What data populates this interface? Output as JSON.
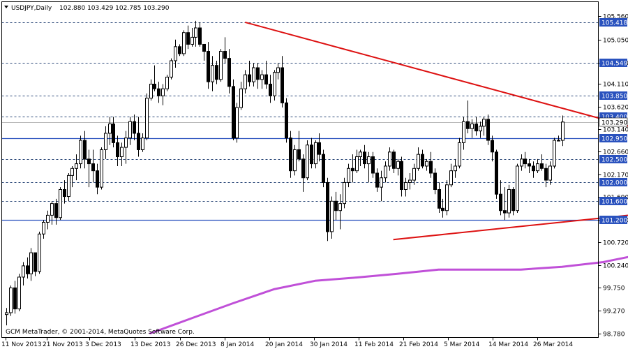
{
  "chart_data": {
    "type": "candlestick",
    "title": "USDJPY,Daily",
    "ohlc_header": "102.880 103.429 102.785 103.290",
    "footer": "GCM MetaTrader, © 2001-2014, MetaQuotes Software Corp.",
    "ylim": [
      98.78,
      105.65
    ],
    "y_ticks": [
      "105.560",
      "105.050",
      "104.549",
      "104.110",
      "103.620",
      "103.140",
      "102.660",
      "102.170",
      "101.690",
      "101.200",
      "100.720",
      "100.240",
      "99.750",
      "99.270",
      "98.780"
    ],
    "x_ticks": [
      "11 Nov 2013",
      "21 Nov 2013",
      "3 Dec 2013",
      "13 Dec 2013",
      "26 Dec 2013",
      "8 Jan 2014",
      "20 Jan 2014",
      "30 Jan 2014",
      "11 Feb 2014",
      "21 Feb 2014",
      "5 Mar 2014",
      "14 Mar 2014",
      "26 Mar 2014"
    ],
    "level_lines": [
      {
        "label": "105.418",
        "value": 105.418,
        "style": "dashed"
      },
      {
        "label": "104.549",
        "value": 104.549,
        "style": "dashed"
      },
      {
        "label": "103.850",
        "value": 103.85,
        "style": "dashed"
      },
      {
        "label": "103.400",
        "value": 103.4,
        "style": "dashed"
      },
      {
        "label": "102.950",
        "value": 102.95,
        "style": "solid"
      },
      {
        "label": "102.500",
        "value": 102.5,
        "style": "dashed"
      },
      {
        "label": "102.000",
        "value": 102.0,
        "style": "dashed"
      },
      {
        "label": "101.600",
        "value": 101.6,
        "style": "dashed"
      },
      {
        "label": "101.200",
        "value": 101.2,
        "style": "solid"
      }
    ],
    "current_price": {
      "label": "103.290",
      "value": 103.29
    },
    "candles": [
      [
        99.18,
        99.32,
        98.95,
        99.22
      ],
      [
        99.22,
        99.8,
        99.15,
        99.75
      ],
      [
        99.75,
        99.9,
        99.2,
        99.3
      ],
      [
        99.3,
        100.05,
        99.25,
        99.98
      ],
      [
        99.98,
        100.3,
        99.8,
        100.22
      ],
      [
        100.22,
        100.4,
        99.95,
        100.05
      ],
      [
        100.05,
        100.6,
        99.9,
        100.5
      ],
      [
        100.5,
        100.5,
        100.0,
        100.1
      ],
      [
        100.1,
        100.95,
        100.05,
        100.9
      ],
      [
        100.9,
        101.2,
        100.8,
        101.15
      ],
      [
        101.15,
        101.4,
        101.0,
        101.3
      ],
      [
        101.3,
        101.6,
        101.1,
        101.55
      ],
      [
        101.55,
        101.65,
        101.1,
        101.25
      ],
      [
        101.25,
        101.9,
        101.2,
        101.85
      ],
      [
        101.85,
        102.05,
        101.55,
        101.7
      ],
      [
        101.7,
        102.2,
        101.6,
        102.15
      ],
      [
        102.15,
        102.35,
        101.9,
        102.3
      ],
      [
        102.3,
        102.6,
        102.05,
        102.4
      ],
      [
        102.4,
        103.0,
        102.3,
        102.9
      ],
      [
        102.9,
        103.1,
        102.3,
        102.5
      ],
      [
        102.5,
        102.7,
        101.9,
        102.4
      ],
      [
        102.4,
        102.7,
        102.0,
        102.25
      ],
      [
        102.25,
        102.4,
        101.75,
        101.9
      ],
      [
        101.9,
        102.75,
        101.85,
        102.7
      ],
      [
        102.7,
        103.2,
        102.5,
        103.05
      ],
      [
        103.05,
        103.4,
        102.8,
        103.25
      ],
      [
        103.25,
        103.4,
        102.75,
        102.85
      ],
      [
        102.85,
        103.0,
        102.35,
        102.55
      ],
      [
        102.55,
        102.85,
        102.35,
        102.75
      ],
      [
        102.75,
        103.1,
        102.4,
        102.95
      ],
      [
        102.95,
        103.4,
        102.8,
        103.3
      ],
      [
        103.3,
        103.45,
        102.9,
        103.05
      ],
      [
        103.05,
        103.4,
        102.55,
        102.7
      ],
      [
        102.7,
        103.05,
        102.65,
        102.95
      ],
      [
        102.95,
        103.9,
        102.9,
        103.8
      ],
      [
        103.8,
        104.2,
        103.75,
        104.1
      ],
      [
        104.1,
        104.5,
        103.95,
        104.0
      ],
      [
        104.0,
        104.15,
        103.7,
        103.85
      ],
      [
        103.85,
        104.1,
        103.65,
        104.0
      ],
      [
        104.0,
        104.3,
        103.95,
        104.25
      ],
      [
        104.25,
        104.65,
        104.2,
        104.6
      ],
      [
        104.6,
        105.05,
        104.45,
        104.9
      ],
      [
        104.9,
        104.95,
        104.7,
        104.75
      ],
      [
        104.75,
        105.25,
        104.7,
        105.2
      ],
      [
        105.2,
        105.35,
        104.85,
        104.95
      ],
      [
        104.95,
        105.3,
        104.9,
        105.1
      ],
      [
        105.1,
        105.45,
        104.9,
        105.3
      ],
      [
        105.3,
        105.42,
        104.9,
        104.95
      ],
      [
        104.95,
        104.95,
        104.6,
        104.8
      ],
      [
        104.8,
        105.0,
        104.0,
        104.15
      ],
      [
        104.15,
        104.7,
        103.95,
        104.5
      ],
      [
        104.5,
        104.6,
        104.1,
        104.2
      ],
      [
        104.2,
        104.85,
        104.15,
        104.8
      ],
      [
        104.8,
        105.1,
        104.55,
        104.65
      ],
      [
        104.65,
        104.85,
        103.9,
        104.05
      ],
      [
        104.05,
        104.2,
        102.9,
        102.95
      ],
      [
        102.95,
        103.7,
        102.85,
        103.6
      ],
      [
        103.6,
        104.15,
        103.55,
        104.0
      ],
      [
        104.0,
        104.4,
        103.9,
        104.3
      ],
      [
        104.3,
        104.6,
        104.05,
        104.15
      ],
      [
        104.15,
        104.55,
        104.05,
        104.45
      ],
      [
        104.45,
        104.55,
        104.0,
        104.2
      ],
      [
        104.2,
        104.4,
        104.0,
        104.3
      ],
      [
        104.3,
        104.6,
        104.0,
        104.1
      ],
      [
        104.1,
        104.3,
        103.7,
        103.85
      ],
      [
        103.85,
        104.4,
        103.75,
        104.35
      ],
      [
        104.35,
        104.55,
        104.2,
        104.45
      ],
      [
        104.45,
        104.7,
        103.6,
        103.7
      ],
      [
        103.7,
        103.8,
        102.85,
        102.95
      ],
      [
        102.95,
        103.1,
        102.1,
        102.25
      ],
      [
        102.25,
        102.8,
        102.15,
        102.7
      ],
      [
        102.7,
        103.1,
        102.45,
        102.5
      ],
      [
        102.5,
        102.6,
        101.8,
        102.1
      ],
      [
        102.1,
        102.9,
        102.05,
        102.8
      ],
      [
        102.8,
        102.95,
        102.3,
        102.4
      ],
      [
        102.4,
        102.9,
        102.3,
        102.85
      ],
      [
        102.85,
        103.05,
        102.45,
        102.6
      ],
      [
        102.6,
        102.7,
        101.9,
        102.0
      ],
      [
        102.0,
        102.1,
        100.75,
        100.95
      ],
      [
        100.95,
        101.7,
        100.8,
        101.6
      ],
      [
        101.6,
        101.8,
        101.2,
        101.4
      ],
      [
        101.4,
        101.75,
        101.0,
        101.55
      ],
      [
        101.55,
        102.1,
        101.45,
        102.0
      ],
      [
        102.0,
        102.4,
        101.9,
        102.3
      ],
      [
        102.3,
        102.6,
        102.0,
        102.25
      ],
      [
        102.25,
        102.7,
        102.2,
        102.55
      ],
      [
        102.55,
        102.7,
        102.35,
        102.65
      ],
      [
        102.65,
        102.8,
        102.3,
        102.4
      ],
      [
        102.4,
        102.65,
        102.0,
        102.55
      ],
      [
        102.55,
        102.65,
        102.1,
        102.2
      ],
      [
        102.2,
        102.3,
        101.8,
        101.9
      ],
      [
        101.9,
        102.25,
        101.6,
        102.1
      ],
      [
        102.1,
        102.45,
        102.0,
        102.35
      ],
      [
        102.35,
        102.75,
        102.25,
        102.65
      ],
      [
        102.65,
        102.7,
        102.2,
        102.3
      ],
      [
        102.3,
        102.5,
        102.15,
        102.45
      ],
      [
        102.45,
        102.55,
        101.7,
        101.85
      ],
      [
        101.85,
        102.1,
        101.7,
        102.0
      ],
      [
        102.0,
        102.2,
        101.85,
        102.05
      ],
      [
        102.05,
        102.4,
        101.95,
        102.3
      ],
      [
        102.3,
        102.75,
        102.25,
        102.6
      ],
      [
        102.6,
        102.7,
        102.3,
        102.35
      ],
      [
        102.35,
        102.5,
        102.25,
        102.45
      ],
      [
        102.45,
        102.65,
        102.1,
        102.2
      ],
      [
        102.2,
        102.3,
        101.75,
        101.85
      ],
      [
        101.85,
        102.0,
        101.35,
        101.45
      ],
      [
        101.45,
        101.65,
        101.25,
        101.4
      ],
      [
        101.4,
        102.05,
        101.3,
        101.95
      ],
      [
        101.95,
        102.4,
        101.9,
        102.25
      ],
      [
        102.25,
        102.5,
        102.1,
        102.35
      ],
      [
        102.35,
        102.95,
        102.3,
        102.85
      ],
      [
        102.85,
        103.4,
        102.7,
        103.3
      ],
      [
        103.3,
        103.75,
        103.05,
        103.15
      ],
      [
        103.15,
        103.35,
        102.95,
        103.25
      ],
      [
        103.25,
        103.4,
        103.0,
        103.1
      ],
      [
        103.1,
        103.3,
        102.95,
        103.2
      ],
      [
        103.2,
        103.4,
        103.0,
        103.35
      ],
      [
        103.35,
        103.45,
        102.8,
        102.9
      ],
      [
        102.9,
        103.0,
        102.45,
        102.65
      ],
      [
        102.65,
        102.7,
        101.65,
        101.75
      ],
      [
        101.75,
        102.05,
        101.3,
        101.4
      ],
      [
        101.4,
        101.9,
        101.2,
        101.35
      ],
      [
        101.35,
        101.95,
        101.25,
        101.85
      ],
      [
        101.85,
        101.9,
        101.3,
        101.4
      ],
      [
        101.4,
        102.4,
        101.35,
        102.35
      ],
      [
        102.35,
        102.6,
        102.25,
        102.5
      ],
      [
        102.5,
        102.65,
        102.3,
        102.4
      ],
      [
        102.4,
        102.5,
        102.2,
        102.35
      ],
      [
        102.35,
        102.45,
        102.1,
        102.25
      ],
      [
        102.25,
        102.5,
        102.2,
        102.4
      ],
      [
        102.4,
        102.6,
        102.25,
        102.3
      ],
      [
        102.3,
        102.4,
        101.9,
        102.05
      ],
      [
        102.05,
        102.45,
        101.95,
        102.35
      ],
      [
        102.35,
        102.95,
        102.3,
        102.9
      ],
      [
        102.9,
        103.0,
        102.9,
        102.9
      ],
      [
        102.9,
        103.43,
        102.78,
        103.29
      ]
    ],
    "trendlines": [
      {
        "name": "resistance",
        "x": [
          58,
          163
        ],
        "y": [
          105.42,
          102.92
        ],
        "color": "#dd1111"
      },
      {
        "name": "support",
        "x": [
          94,
          171
        ],
        "y": [
          100.78,
          101.48
        ],
        "color": "#dd1111"
      }
    ],
    "moving_average": {
      "color": "#c050d8",
      "points": [
        [
          35,
          98.78
        ],
        [
          45,
          99.1
        ],
        [
          55,
          99.42
        ],
        [
          65,
          99.72
        ],
        [
          75,
          99.9
        ],
        [
          85,
          99.97
        ],
        [
          95,
          100.05
        ],
        [
          105,
          100.14
        ],
        [
          115,
          100.14
        ],
        [
          125,
          100.14
        ],
        [
          135,
          100.2
        ],
        [
          145,
          100.3
        ],
        [
          155,
          100.48
        ],
        [
          160,
          100.62
        ]
      ]
    },
    "highlight": {
      "x": 159,
      "y": 103.0,
      "color": "#5ab4e8"
    }
  }
}
